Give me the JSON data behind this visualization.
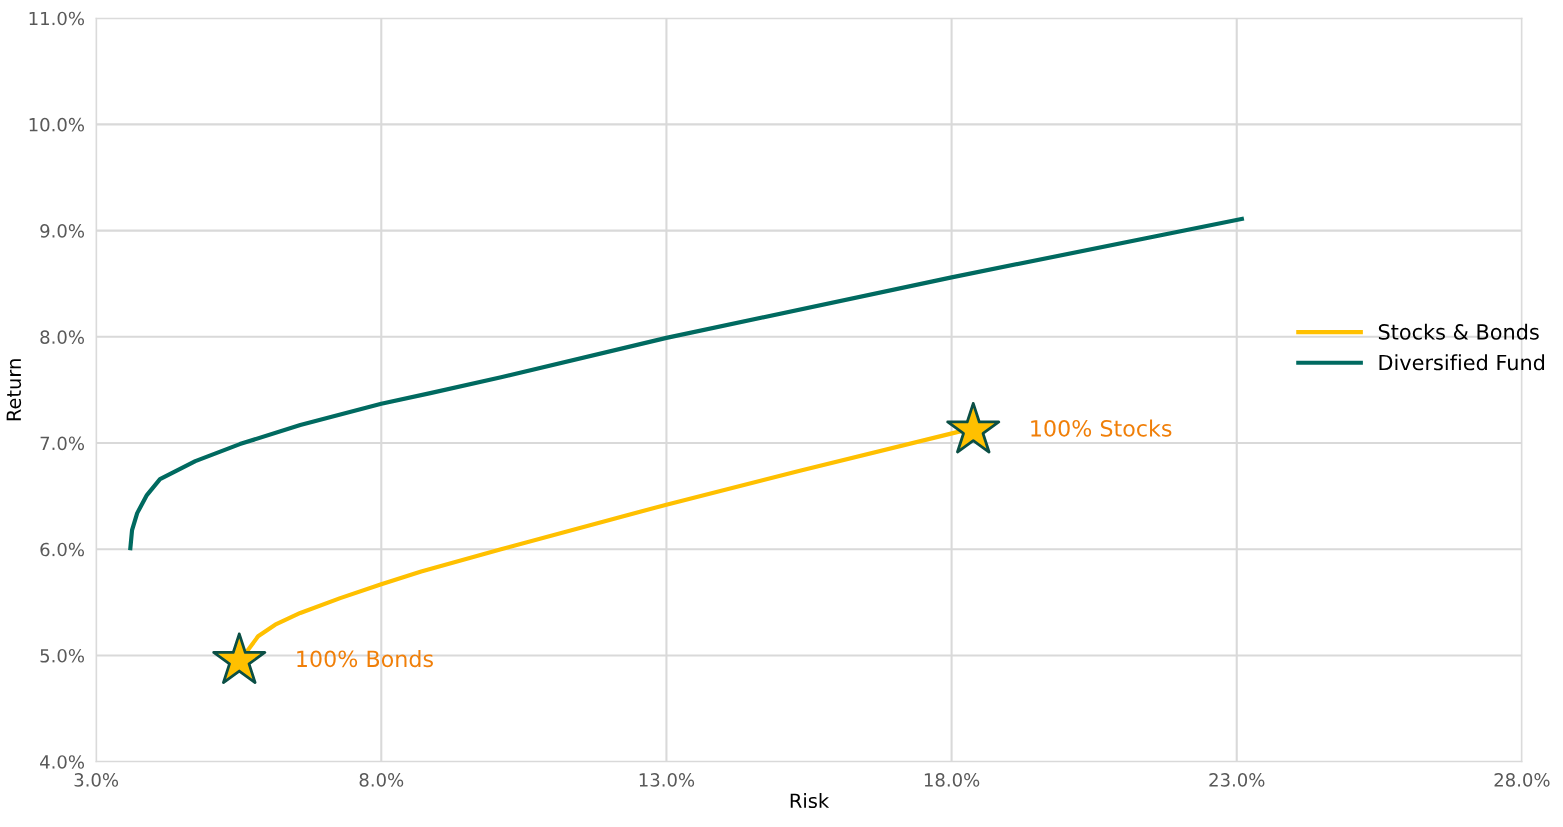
{
  "chart_data": {
    "type": "line",
    "xlabel": "Risk",
    "ylabel": "Return",
    "series": [
      {
        "name": "Stocks & Bonds",
        "color": "#ffc000",
        "x": [
          5.66,
          5.84,
          6.14,
          6.58,
          7.28,
          8.0,
          8.7,
          10.1,
          13.0,
          15.34,
          18.15
        ],
        "values": [
          5.05,
          5.18,
          5.29,
          5.4,
          5.54,
          5.67,
          5.79,
          6.0,
          6.42,
          6.74,
          7.11
        ]
      },
      {
        "name": "Diversified Fund",
        "color": "#006a60",
        "x": [
          3.6,
          3.63,
          3.72,
          3.89,
          4.12,
          4.74,
          5.52,
          6.58,
          8.0,
          8.86,
          10.1,
          13.0,
          18.0,
          23.09
        ],
        "values": [
          6.01,
          6.18,
          6.34,
          6.51,
          6.66,
          6.83,
          6.99,
          7.17,
          7.37,
          7.47,
          7.62,
          7.99,
          8.56,
          9.11
        ]
      },
      {
        "type": "scatter",
        "marker": "star",
        "color": "#ffc000",
        "x": [
          5.51,
          18.38
        ],
        "values": [
          4.95,
          7.12
        ]
      }
    ],
    "annotations": [
      {
        "text": "100% Bonds",
        "x": 5.51,
        "y": 4.95
      },
      {
        "text": "100% Stocks",
        "x": 18.38,
        "y": 7.12
      }
    ],
    "xlim": [
      3.0,
      28.0
    ],
    "ylim": [
      4.0,
      11.0
    ],
    "xticks": [
      {
        "value": 3.0,
        "label": "3.0%"
      },
      {
        "value": 8.0,
        "label": "8.0%"
      },
      {
        "value": 13.0,
        "label": "13.0%"
      },
      {
        "value": 18.0,
        "label": "18.0%"
      },
      {
        "value": 23.0,
        "label": "23.0%"
      },
      {
        "value": 28.0,
        "label": "28.0%"
      }
    ],
    "yticks": [
      {
        "value": 4.0,
        "label": "4.0%"
      },
      {
        "value": 5.0,
        "label": "5.0%"
      },
      {
        "value": 6.0,
        "label": "6.0%"
      },
      {
        "value": 7.0,
        "label": "7.0%"
      },
      {
        "value": 8.0,
        "label": "8.0%"
      },
      {
        "value": 9.0,
        "label": "9.0%"
      },
      {
        "value": 10.0,
        "label": "10.0%"
      },
      {
        "value": 11.0,
        "label": "11.0%"
      }
    ],
    "grid": true,
    "legend": "right",
    "marker": "none",
    "line_style": "solid"
  }
}
